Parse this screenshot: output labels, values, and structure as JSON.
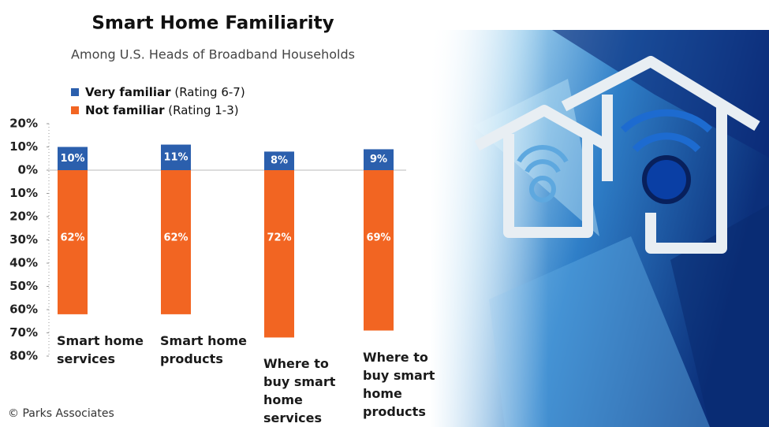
{
  "chart_data": {
    "type": "bar",
    "title": "Smart Home Familiarity",
    "subtitle": "Among U.S. Heads of Broadband Households",
    "source": "© Parks Associates",
    "categories": [
      "Smart home services",
      "Smart home products",
      "Where to buy smart home services",
      "Where to buy smart home products"
    ],
    "series": [
      {
        "name": "Very familiar (Rating 6-7)",
        "color": "#2b5fad",
        "values": [
          10,
          11,
          8,
          9
        ],
        "value_labels": [
          "10%",
          "11%",
          "8%",
          "9%"
        ]
      },
      {
        "name": "Not familiar (Rating 1-3)",
        "color": "#f26522",
        "values": [
          -62,
          -62,
          -72,
          -69
        ],
        "value_labels": [
          "62%",
          "62%",
          "72%",
          "69%"
        ]
      }
    ],
    "ylim": [
      -80,
      20
    ],
    "yticks": [
      {
        "value": 20,
        "label": "20%"
      },
      {
        "value": 10,
        "label": "10%"
      },
      {
        "value": 0,
        "label": "0%"
      },
      {
        "value": -10,
        "label": "10%"
      },
      {
        "value": -20,
        "label": "20%"
      },
      {
        "value": -30,
        "label": "30%"
      },
      {
        "value": -40,
        "label": "40%"
      },
      {
        "value": -50,
        "label": "50%"
      },
      {
        "value": -60,
        "label": "60%"
      },
      {
        "value": -70,
        "label": "70%"
      },
      {
        "value": -80,
        "label": "80%"
      }
    ],
    "legend": "top-left"
  }
}
